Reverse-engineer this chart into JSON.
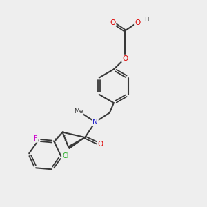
{
  "background_color": "#eeeeee",
  "bond_color": "#383838",
  "atom_colors": {
    "O": "#dd0000",
    "N": "#2222cc",
    "Cl": "#22aa22",
    "F": "#cc00cc",
    "H": "#777777",
    "C": "#383838"
  },
  "figsize": [
    3.0,
    3.0
  ],
  "dpi": 100,
  "xlim": [
    0,
    10
  ],
  "ylim": [
    0,
    10
  ]
}
